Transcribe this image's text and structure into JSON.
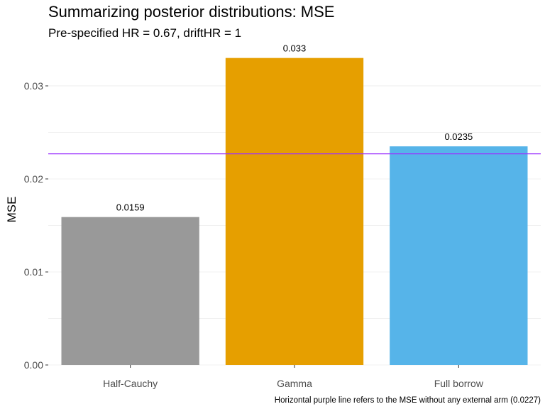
{
  "chart_data": {
    "type": "bar",
    "title": "Summarizing posterior distributions: MSE",
    "subtitle": "Pre-specified HR = 0.67, driftHR = 1",
    "xlabel": "",
    "ylabel": "MSE",
    "categories": [
      "Half-Cauchy",
      "Gamma",
      "Full borrow"
    ],
    "values": [
      0.0159,
      0.033,
      0.0235
    ],
    "data_labels": [
      "0.0159",
      "0.033",
      "0.0235"
    ],
    "bar_colors": [
      "#999999",
      "#E69F00",
      "#56B4E9"
    ],
    "ylim": [
      0,
      0.0345
    ],
    "y_ticks": [
      0,
      0.01,
      0.02,
      0.03
    ],
    "y_tick_labels": [
      "0.00",
      "0.01",
      "0.02",
      "0.03"
    ],
    "reference_line": {
      "value": 0.0227,
      "color": "#9B30FF"
    },
    "caption": "Horizontal purple line refers to the MSE without any external arm (0.0227)",
    "grid": true,
    "legend": "none"
  }
}
